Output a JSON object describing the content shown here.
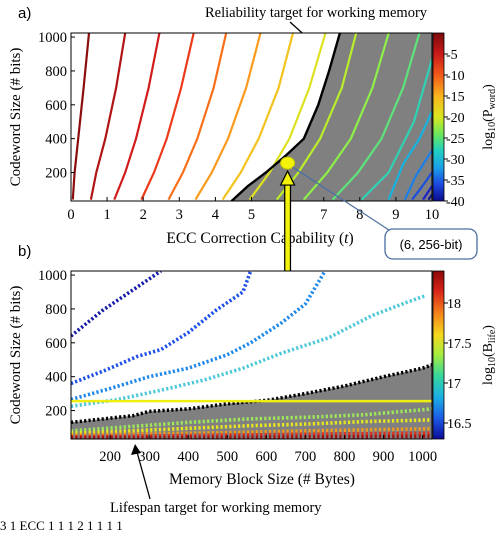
{
  "chart_data": [
    {
      "type": "line",
      "panel_label": "a)",
      "title": "",
      "xlabel_main": "ECC Correction Capability (",
      "xlabel_var": "t",
      "xlabel_end": ")",
      "ylabel": "Codeword Size (# bits)",
      "xlim": [
        0,
        10
      ],
      "ylim": [
        32,
        1024
      ],
      "xticks": [
        "0",
        "1",
        "2",
        "3",
        "4",
        "5",
        "6",
        "7",
        "8",
        "9",
        "10"
      ],
      "yticks": [
        200,
        400,
        600,
        800,
        1000
      ],
      "colorbar": {
        "label_main": "log",
        "label_sub": "10",
        "label_arg": "(P",
        "label_argsub": "word",
        "label_end": ")",
        "range": [
          -40,
          0
        ],
        "ticks": [
          -5,
          -10,
          -15,
          -20,
          -25,
          -30,
          -35,
          -40
        ]
      },
      "contours": [
        {
          "level": -1,
          "color": "#8c0d0d",
          "points": [
            [
              0.5,
              1024
            ],
            [
              0.35,
              700
            ],
            [
              0.2,
              400
            ],
            [
              0.1,
              200
            ],
            [
              0.05,
              40
            ]
          ]
        },
        {
          "level": -3,
          "color": "#b11414",
          "points": [
            [
              1.5,
              1024
            ],
            [
              1.25,
              700
            ],
            [
              0.95,
              400
            ],
            [
              0.7,
              200
            ],
            [
              0.55,
              40
            ]
          ]
        },
        {
          "level": -5,
          "color": "#d21c1c",
          "points": [
            [
              2.45,
              1024
            ],
            [
              2.15,
              700
            ],
            [
              1.8,
              400
            ],
            [
              1.5,
              200
            ],
            [
              1.2,
              40
            ]
          ]
        },
        {
          "level": -7,
          "color": "#ec3a1a",
          "points": [
            [
              3.4,
              1024
            ],
            [
              3.05,
              700
            ],
            [
              2.65,
              400
            ],
            [
              2.3,
              200
            ],
            [
              1.95,
              40
            ]
          ]
        },
        {
          "level": -9,
          "color": "#f86f1a",
          "points": [
            [
              4.3,
              1024
            ],
            [
              3.95,
              700
            ],
            [
              3.5,
              400
            ],
            [
              3.1,
              200
            ],
            [
              2.7,
              40
            ]
          ]
        },
        {
          "level": -11,
          "color": "#fb9a1c",
          "points": [
            [
              5.25,
              1024
            ],
            [
              4.85,
              700
            ],
            [
              4.35,
              400
            ],
            [
              3.9,
              200
            ],
            [
              3.45,
              40
            ]
          ]
        },
        {
          "level": -13,
          "color": "#f3c31e",
          "points": [
            [
              6.15,
              1024
            ],
            [
              5.75,
              700
            ],
            [
              5.2,
              400
            ],
            [
              4.7,
              200
            ],
            [
              4.2,
              40
            ]
          ]
        },
        {
          "level": -15,
          "color": "#dde11f",
          "points": [
            [
              7.05,
              1024
            ],
            [
              6.6,
              700
            ],
            [
              6.05,
              400
            ],
            [
              5.5,
              200
            ],
            [
              4.95,
              40
            ]
          ]
        },
        {
          "level": -17,
          "color": "#b9ee2a",
          "points": [
            [
              7.9,
              1024
            ],
            [
              7.5,
              700
            ],
            [
              6.9,
              400
            ],
            [
              6.3,
              200
            ],
            [
              5.7,
              40
            ]
          ]
        },
        {
          "level": -19,
          "color": "#8ef048",
          "points": [
            [
              8.8,
              1024
            ],
            [
              8.35,
              700
            ],
            [
              7.75,
              400
            ],
            [
              7.1,
              200
            ],
            [
              6.45,
              40
            ]
          ]
        },
        {
          "level": -21,
          "color": "#5ee37a",
          "points": [
            [
              9.65,
              1024
            ],
            [
              9.2,
              700
            ],
            [
              8.6,
              400
            ],
            [
              7.95,
              200
            ],
            [
              7.25,
              40
            ]
          ]
        },
        {
          "level": -23,
          "color": "#2fd2b2",
          "points": [
            [
              10,
              870
            ],
            [
              9.5,
              500
            ],
            [
              8.8,
              200
            ],
            [
              8.05,
              40
            ]
          ]
        },
        {
          "level": -26,
          "color": "#15b3e0",
          "points": [
            [
              10,
              560
            ],
            [
              9.65,
              400
            ],
            [
              9.2,
              250
            ],
            [
              8.8,
              40
            ]
          ]
        },
        {
          "level": -29,
          "color": "#1a7fe8",
          "points": [
            [
              10,
              330
            ],
            [
              9.55,
              180
            ],
            [
              9.25,
              40
            ]
          ]
        },
        {
          "level": -32,
          "color": "#1b4fe0",
          "points": [
            [
              10,
              200
            ],
            [
              9.7,
              110
            ],
            [
              9.45,
              40
            ]
          ]
        },
        {
          "level": -35,
          "color": "#1a22c8",
          "points": [
            [
              10,
              120
            ],
            [
              9.75,
              40
            ]
          ]
        },
        {
          "level": -38,
          "color": "#101596",
          "points": [
            [
              10,
              70
            ],
            [
              9.9,
              40
            ]
          ]
        }
      ],
      "target_boundary": [
        [
          4.45,
          32
        ],
        [
          4.9,
          120
        ],
        [
          5.4,
          200
        ],
        [
          5.95,
          300
        ],
        [
          6.45,
          400
        ],
        [
          6.85,
          600
        ],
        [
          7.15,
          800
        ],
        [
          7.45,
          1024
        ]
      ],
      "marker": {
        "x": 6,
        "y": 256
      },
      "annotations": {
        "top": "Reliability target for working memory",
        "callout": "(6, 256-bit)"
      }
    },
    {
      "type": "line",
      "panel_label": "b)",
      "title": "",
      "xlabel": "Memory Block Size (# Bytes)",
      "ylabel": "Codeword Size (# bits)",
      "xlim": [
        100,
        1024
      ],
      "ylim": [
        32,
        1024
      ],
      "xticks": [
        200,
        300,
        400,
        500,
        600,
        700,
        800,
        900,
        1000
      ],
      "yticks": [
        200,
        400,
        600,
        800,
        1000
      ],
      "colorbar": {
        "label_main": "log",
        "label_sub": "10",
        "label_arg": "(B",
        "label_argsub": "life",
        "label_end": ")",
        "range": [
          16.3,
          18.4
        ],
        "ticks": [
          18,
          17.5,
          17,
          16.5
        ]
      },
      "contours": [
        {
          "level": 16.3,
          "color": "#141ca8",
          "points": [
            [
              100,
              640
            ],
            [
              180,
              790
            ],
            [
              270,
              930
            ],
            [
              330,
              1024
            ]
          ]
        },
        {
          "level": 16.45,
          "color": "#1e4fe6",
          "points": [
            [
              100,
              360
            ],
            [
              190,
              440
            ],
            [
              270,
              520
            ],
            [
              330,
              560
            ],
            [
              400,
              660
            ],
            [
              470,
              790
            ],
            [
              540,
              900
            ],
            [
              560,
              1024
            ]
          ]
        },
        {
          "level": 16.6,
          "color": "#1e88e8",
          "points": [
            [
              100,
              265
            ],
            [
              200,
              330
            ],
            [
              300,
              400
            ],
            [
              400,
              450
            ],
            [
              500,
              530
            ],
            [
              560,
              600
            ],
            [
              640,
              720
            ],
            [
              700,
              830
            ],
            [
              750,
              1024
            ]
          ]
        },
        {
          "level": 16.75,
          "color": "#4ec8d8",
          "points": [
            [
              100,
              225
            ],
            [
              220,
              265
            ],
            [
              330,
              320
            ],
            [
              440,
              380
            ],
            [
              540,
              450
            ],
            [
              640,
              540
            ],
            [
              760,
              630
            ],
            [
              870,
              760
            ],
            [
              960,
              840
            ],
            [
              1010,
              880
            ]
          ]
        },
        {
          "level": 17.4,
          "color": "#9ee85a",
          "points": [
            [
              100,
              80
            ],
            [
              250,
              105
            ],
            [
              400,
              130
            ],
            [
              550,
              150
            ],
            [
              700,
              160
            ],
            [
              850,
              175
            ],
            [
              1000,
              205
            ],
            [
              1024,
              210
            ]
          ]
        },
        {
          "level": 17.6,
          "color": "#e8e81e",
          "points": [
            [
              100,
              65
            ],
            [
              250,
              80
            ],
            [
              400,
              95
            ],
            [
              550,
              110
            ],
            [
              700,
              120
            ],
            [
              850,
              135
            ],
            [
              1024,
              145
            ]
          ]
        },
        {
          "level": 17.8,
          "color": "#f49a1c",
          "points": [
            [
              100,
              55
            ],
            [
              300,
              62
            ],
            [
              500,
              70
            ],
            [
              700,
              80
            ],
            [
              900,
              88
            ],
            [
              1024,
              92
            ]
          ]
        },
        {
          "level": 18.0,
          "color": "#e0301a",
          "points": [
            [
              100,
              45
            ],
            [
              300,
              50
            ],
            [
              500,
              55
            ],
            [
              700,
              60
            ],
            [
              900,
              64
            ],
            [
              1024,
              66
            ]
          ]
        },
        {
          "level": 18.2,
          "color": "#a21010",
          "points": [
            [
              100,
              38
            ],
            [
              400,
              40
            ],
            [
              700,
              44
            ],
            [
              1024,
              48
            ]
          ]
        }
      ],
      "target_boundary": [
        [
          100,
          130
        ],
        [
          260,
          170
        ],
        [
          300,
          195
        ],
        [
          400,
          210
        ],
        [
          500,
          240
        ],
        [
          600,
          260
        ],
        [
          700,
          300
        ],
        [
          800,
          345
        ],
        [
          900,
          400
        ],
        [
          1000,
          450
        ],
        [
          1024,
          470
        ]
      ],
      "reference_line": {
        "y": 256
      },
      "annotations": {
        "bottom": "Lifespan target for working memory"
      }
    }
  ],
  "caption": "    3    1    ECC    1     1             1    2        1          1  1    1    "
}
